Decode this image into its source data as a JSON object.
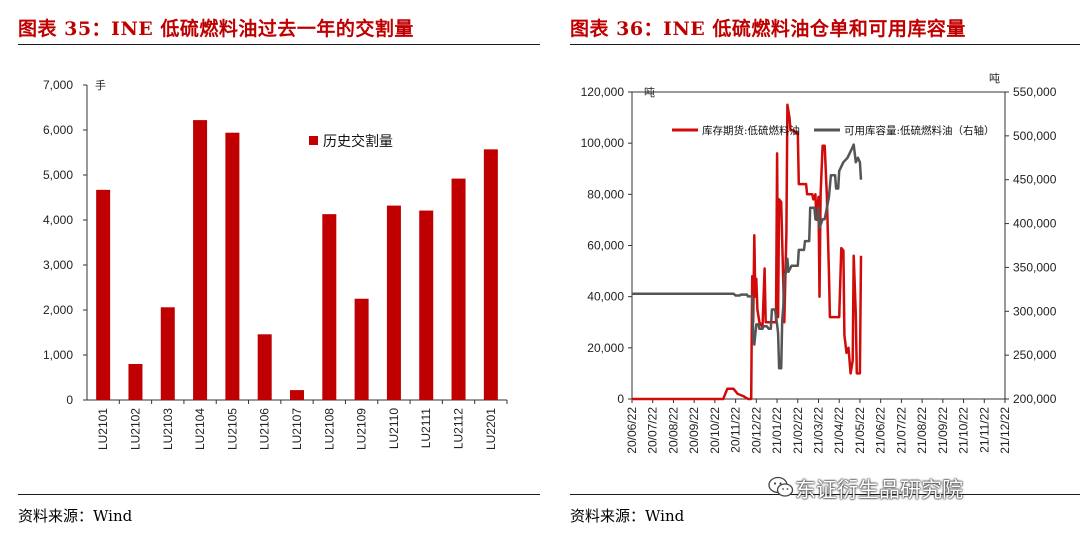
{
  "left": {
    "title": "图表 35：INE 低硫燃料油过去一年的交割量",
    "source": "资料来源：Wind",
    "chart_data": {
      "type": "bar",
      "unit": "手",
      "categories": [
        "LU2101",
        "LU2102",
        "LU2103",
        "LU2104",
        "LU2105",
        "LU2106",
        "LU2107",
        "LU2108",
        "LU2109",
        "LU2110",
        "LU2111",
        "LU2112",
        "LU2201"
      ],
      "series": [
        {
          "name": "历史交割量",
          "values": [
            4670,
            800,
            2060,
            6220,
            5940,
            1460,
            220,
            4130,
            2250,
            4320,
            4210,
            4920,
            5570
          ],
          "color": "#c00000"
        }
      ],
      "ylim": [
        0,
        7000
      ],
      "yticks": [
        0,
        1000,
        2000,
        3000,
        4000,
        5000,
        6000,
        7000
      ],
      "ytick_labels": [
        "0",
        "1,000",
        "2,000",
        "3,000",
        "4,000",
        "5,000",
        "6,000",
        "7,000"
      ],
      "legend_position": "top-right"
    }
  },
  "right": {
    "title": "图表 36：INE 低硫燃料油仓单和可用库容量",
    "source": "资料来源：Wind",
    "chart_data": {
      "type": "line",
      "unit_left": "吨",
      "unit_right": "吨",
      "x_labels": [
        "20/06/22",
        "20/07/22",
        "20/08/22",
        "20/09/22",
        "20/10/22",
        "20/11/22",
        "20/12/22",
        "21/01/22",
        "21/02/22",
        "21/03/22",
        "21/04/22",
        "21/05/22",
        "21/06/22",
        "21/07/22",
        "21/08/22",
        "21/09/22",
        "21/10/22",
        "21/11/22",
        "21/12/22"
      ],
      "ylim_left": [
        0,
        120000
      ],
      "yticks_left": [
        "0",
        "20,000",
        "40,000",
        "60,000",
        "80,000",
        "100,000",
        "120,000"
      ],
      "ylim_right": [
        200000,
        550000
      ],
      "yticks_right": [
        "200,000",
        "250,000",
        "300,000",
        "350,000",
        "400,000",
        "450,000",
        "500,000",
        "550,000"
      ],
      "series": [
        {
          "name": "库存期货:低硫燃料油",
          "axis": "left",
          "color": "#d10a0a",
          "points": [
            [
              0,
              0
            ],
            [
              4.4,
              0
            ],
            [
              4.6,
              4000
            ],
            [
              4.9,
              4000
            ],
            [
              5.1,
              2000
            ],
            [
              5.4,
              1000
            ],
            [
              5.6,
              0
            ],
            [
              5.75,
              0
            ],
            [
              5.8,
              48000
            ],
            [
              5.85,
              30000
            ],
            [
              5.9,
              64000
            ],
            [
              5.95,
              40000
            ],
            [
              6.0,
              47000
            ],
            [
              6.05,
              35000
            ],
            [
              6.15,
              30000
            ],
            [
              6.3,
              28000
            ],
            [
              6.4,
              51000
            ],
            [
              6.45,
              30000
            ],
            [
              6.55,
              30000
            ],
            [
              6.7,
              30000
            ],
            [
              6.8,
              30000
            ],
            [
              6.95,
              30000
            ],
            [
              7.0,
              96000
            ],
            [
              7.05,
              32000
            ],
            [
              7.1,
              78000
            ],
            [
              7.2,
              77000
            ],
            [
              7.35,
              30000
            ],
            [
              7.45,
              65000
            ],
            [
              7.5,
              115000
            ],
            [
              7.6,
              110000
            ],
            [
              7.65,
              105000
            ],
            [
              7.8,
              105000
            ],
            [
              7.9,
              104000
            ],
            [
              8.0,
              104000
            ],
            [
              8.05,
              84000
            ],
            [
              8.2,
              84000
            ],
            [
              8.4,
              84000
            ],
            [
              8.45,
              80000
            ],
            [
              8.7,
              80000
            ],
            [
              8.75,
              78000
            ],
            [
              8.85,
              80000
            ],
            [
              8.9,
              70000
            ],
            [
              9.0,
              79000
            ],
            [
              9.05,
              40000
            ],
            [
              9.1,
              80000
            ],
            [
              9.2,
              99000
            ],
            [
              9.3,
              99000
            ],
            [
              9.4,
              80000
            ],
            [
              9.5,
              50000
            ],
            [
              9.55,
              32000
            ],
            [
              9.8,
              32000
            ],
            [
              10.0,
              32000
            ],
            [
              10.1,
              59000
            ],
            [
              10.2,
              58000
            ],
            [
              10.25,
              25000
            ],
            [
              10.35,
              18000
            ],
            [
              10.45,
              20000
            ],
            [
              10.55,
              10000
            ],
            [
              10.65,
              15000
            ],
            [
              10.7,
              56000
            ],
            [
              10.8,
              33000
            ],
            [
              10.85,
              10000
            ],
            [
              11.0,
              10000
            ],
            [
              11.05,
              56000
            ]
          ]
        },
        {
          "name": "可用库容量:低硫燃料油（右轴）",
          "axis": "right",
          "color": "#555555",
          "points": [
            [
              0,
              320000
            ],
            [
              4.9,
              320000
            ],
            [
              5.0,
              318000
            ],
            [
              5.2,
              318000
            ],
            [
              5.25,
              319000
            ],
            [
              5.55,
              319000
            ],
            [
              5.6,
              317000
            ],
            [
              5.8,
              317000
            ],
            [
              5.85,
              270000
            ],
            [
              5.9,
              262000
            ],
            [
              6.0,
              285000
            ],
            [
              6.1,
              285000
            ],
            [
              6.15,
              280000
            ],
            [
              6.3,
              280000
            ],
            [
              6.35,
              283000
            ],
            [
              6.5,
              283000
            ],
            [
              6.6,
              280000
            ],
            [
              6.7,
              280000
            ],
            [
              6.75,
              302000
            ],
            [
              6.9,
              302000
            ],
            [
              7.0,
              285000
            ],
            [
              7.05,
              275000
            ],
            [
              7.1,
              235000
            ],
            [
              7.2,
              235000
            ],
            [
              7.25,
              290000
            ],
            [
              7.3,
              305000
            ],
            [
              7.35,
              340000
            ],
            [
              7.45,
              345000
            ],
            [
              7.5,
              360000
            ],
            [
              7.55,
              345000
            ],
            [
              7.7,
              352000
            ],
            [
              7.9,
              352000
            ],
            [
              8.0,
              352000
            ],
            [
              8.05,
              370000
            ],
            [
              8.3,
              370000
            ],
            [
              8.35,
              380000
            ],
            [
              8.55,
              380000
            ],
            [
              8.6,
              418000
            ],
            [
              8.8,
              418000
            ],
            [
              8.85,
              405000
            ],
            [
              8.95,
              405000
            ],
            [
              9.0,
              418000
            ],
            [
              9.05,
              395000
            ],
            [
              9.2,
              405000
            ],
            [
              9.3,
              405000
            ],
            [
              9.5,
              430000
            ],
            [
              9.6,
              455000
            ],
            [
              9.8,
              455000
            ],
            [
              9.85,
              440000
            ],
            [
              9.95,
              440000
            ],
            [
              10.0,
              460000
            ],
            [
              10.2,
              470000
            ],
            [
              10.4,
              475000
            ],
            [
              10.6,
              485000
            ],
            [
              10.7,
              490000
            ],
            [
              10.8,
              470000
            ],
            [
              10.9,
              475000
            ],
            [
              11.0,
              470000
            ],
            [
              11.05,
              450000
            ]
          ]
        }
      ],
      "legend_position": "top"
    }
  },
  "watermark": "东证衍生品研究院"
}
